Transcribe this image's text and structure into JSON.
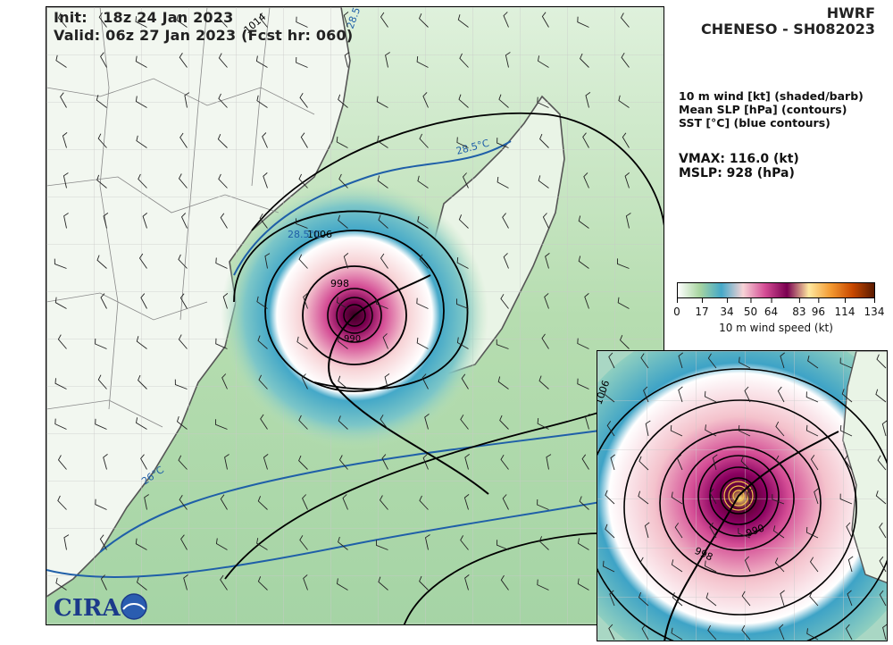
{
  "header": {
    "init_label": "Init:",
    "init_value": "18z 24 Jan 2023",
    "valid_label": "Valid:",
    "valid_value": "06z 27 Jan 2023",
    "forecast_hour": "(Fcst hr: 060)",
    "model": "HWRF",
    "storm": "CHENESO - SH082023"
  },
  "legend": {
    "line1": "10 m wind [kt] (shaded/barb)",
    "line2": "Mean SLP [hPa] (contours)",
    "line3": "SST [°C] (blue contours)"
  },
  "stats": {
    "vmax": "VMAX: 116.0 (kt)",
    "mslp": "MSLP:  928 (hPa)"
  },
  "colorbar": {
    "title": "10 m wind speed (kt)",
    "ticks": [
      "0",
      "17",
      "34",
      "50",
      "64",
      "83",
      "96",
      "114",
      "134"
    ],
    "tick_values": [
      0,
      17,
      34,
      50,
      64,
      83,
      96,
      114,
      134
    ],
    "range": [
      0,
      134
    ],
    "colors": [
      "#ffffff",
      "#a8d5a0",
      "#44a8c8",
      "#f7d3d6",
      "#d44d95",
      "#7a0050",
      "#ffe9a0",
      "#f39a32",
      "#c84800",
      "#5a1a00"
    ]
  },
  "map_labels": {
    "sst_1": "28.5°C",
    "sst_2": "28.5°C",
    "sst_3": "26°C",
    "sst_4": "28.5°C",
    "slp_1": "1006",
    "slp_2": "998",
    "slp_3": "990",
    "slp_4": "1014",
    "inset_slp_1": "1006",
    "inset_slp_2": "998",
    "inset_slp_3": "990"
  },
  "logo": {
    "text": "CIRA"
  }
}
